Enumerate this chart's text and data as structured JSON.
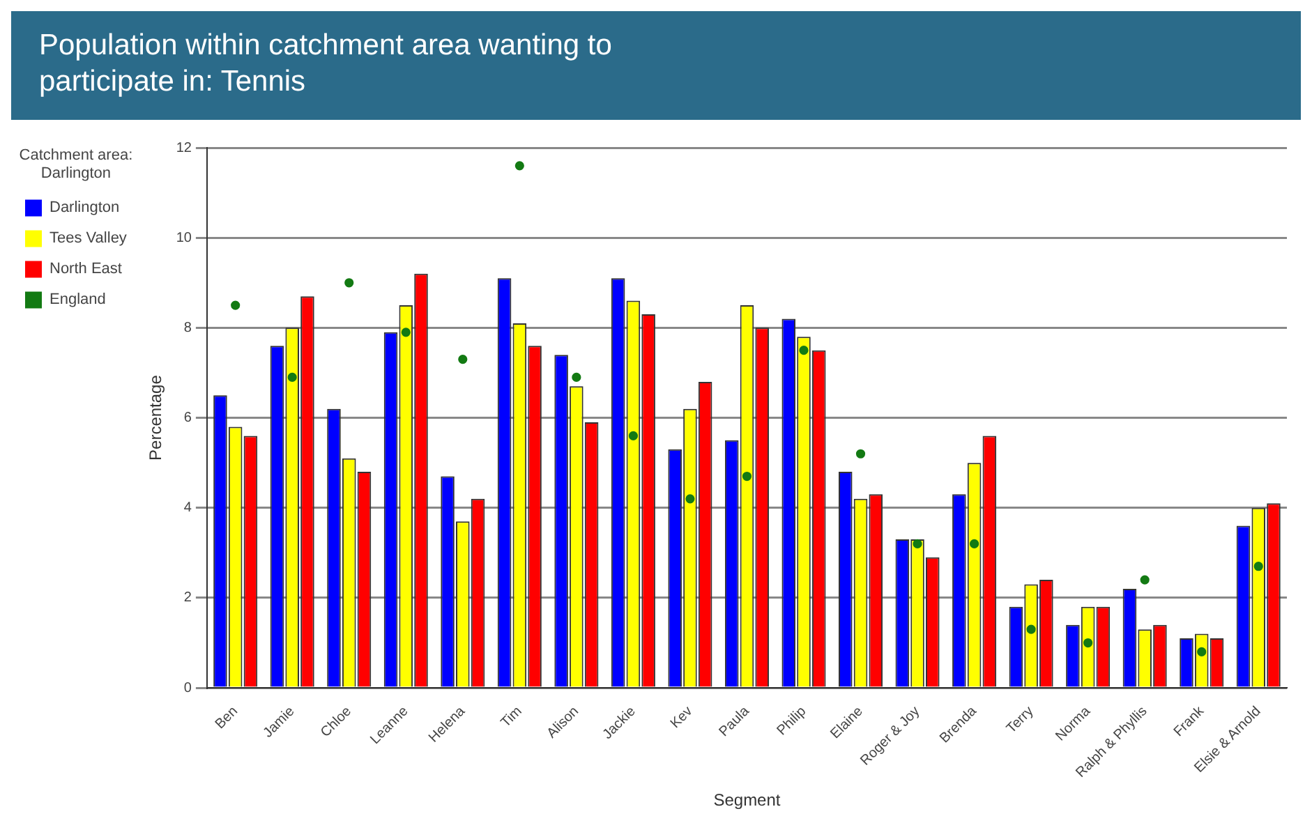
{
  "chart_data": {
    "type": "bar",
    "title": "Population within catchment area wanting to participate in: Tennis",
    "legend_title": "Catchment area: Darlington",
    "xlabel": "Segment",
    "ylabel": "Percentage",
    "categories": [
      "Ben",
      "Jamie",
      "Chloe",
      "Leanne",
      "Helena",
      "Tim",
      "Alison",
      "Jackie",
      "Kev",
      "Paula",
      "Philip",
      "Elaine",
      "Roger & Joy",
      "Brenda",
      "Terry",
      "Norma",
      "Ralph & Phyllis",
      "Frank",
      "Elsie & Arnold"
    ],
    "series": [
      {
        "name": "Darlington",
        "color": "#0000ff",
        "values": [
          6.5,
          7.6,
          6.2,
          7.9,
          4.7,
          9.1,
          7.4,
          9.1,
          5.3,
          5.5,
          8.2,
          4.8,
          3.3,
          4.3,
          1.8,
          1.4,
          2.2,
          1.1,
          3.6
        ]
      },
      {
        "name": "Tees Valley",
        "color": "#ffff00",
        "values": [
          5.8,
          8.0,
          5.1,
          8.5,
          3.7,
          8.1,
          6.7,
          8.6,
          6.2,
          8.5,
          7.8,
          4.2,
          3.3,
          5.0,
          2.3,
          1.8,
          1.3,
          1.2,
          4.0
        ]
      },
      {
        "name": "North East",
        "color": "#ff0000",
        "values": [
          5.6,
          8.7,
          4.8,
          9.2,
          4.2,
          7.6,
          5.9,
          8.3,
          6.8,
          8.0,
          7.5,
          4.3,
          2.9,
          5.6,
          2.4,
          1.8,
          1.4,
          1.1,
          4.1
        ]
      },
      {
        "name": "England",
        "type": "scatter",
        "color": "#137a13",
        "values": [
          8.5,
          6.9,
          9.0,
          7.9,
          7.3,
          11.6,
          6.9,
          5.6,
          4.2,
          4.7,
          7.5,
          5.2,
          3.2,
          3.2,
          1.3,
          1.0,
          2.4,
          0.8,
          2.7
        ]
      }
    ],
    "marker": "circle",
    "ylim": [
      0,
      12
    ],
    "yticks": [
      0,
      2,
      4,
      6,
      8,
      10,
      12
    ],
    "grid": "y",
    "legend": "top left"
  }
}
